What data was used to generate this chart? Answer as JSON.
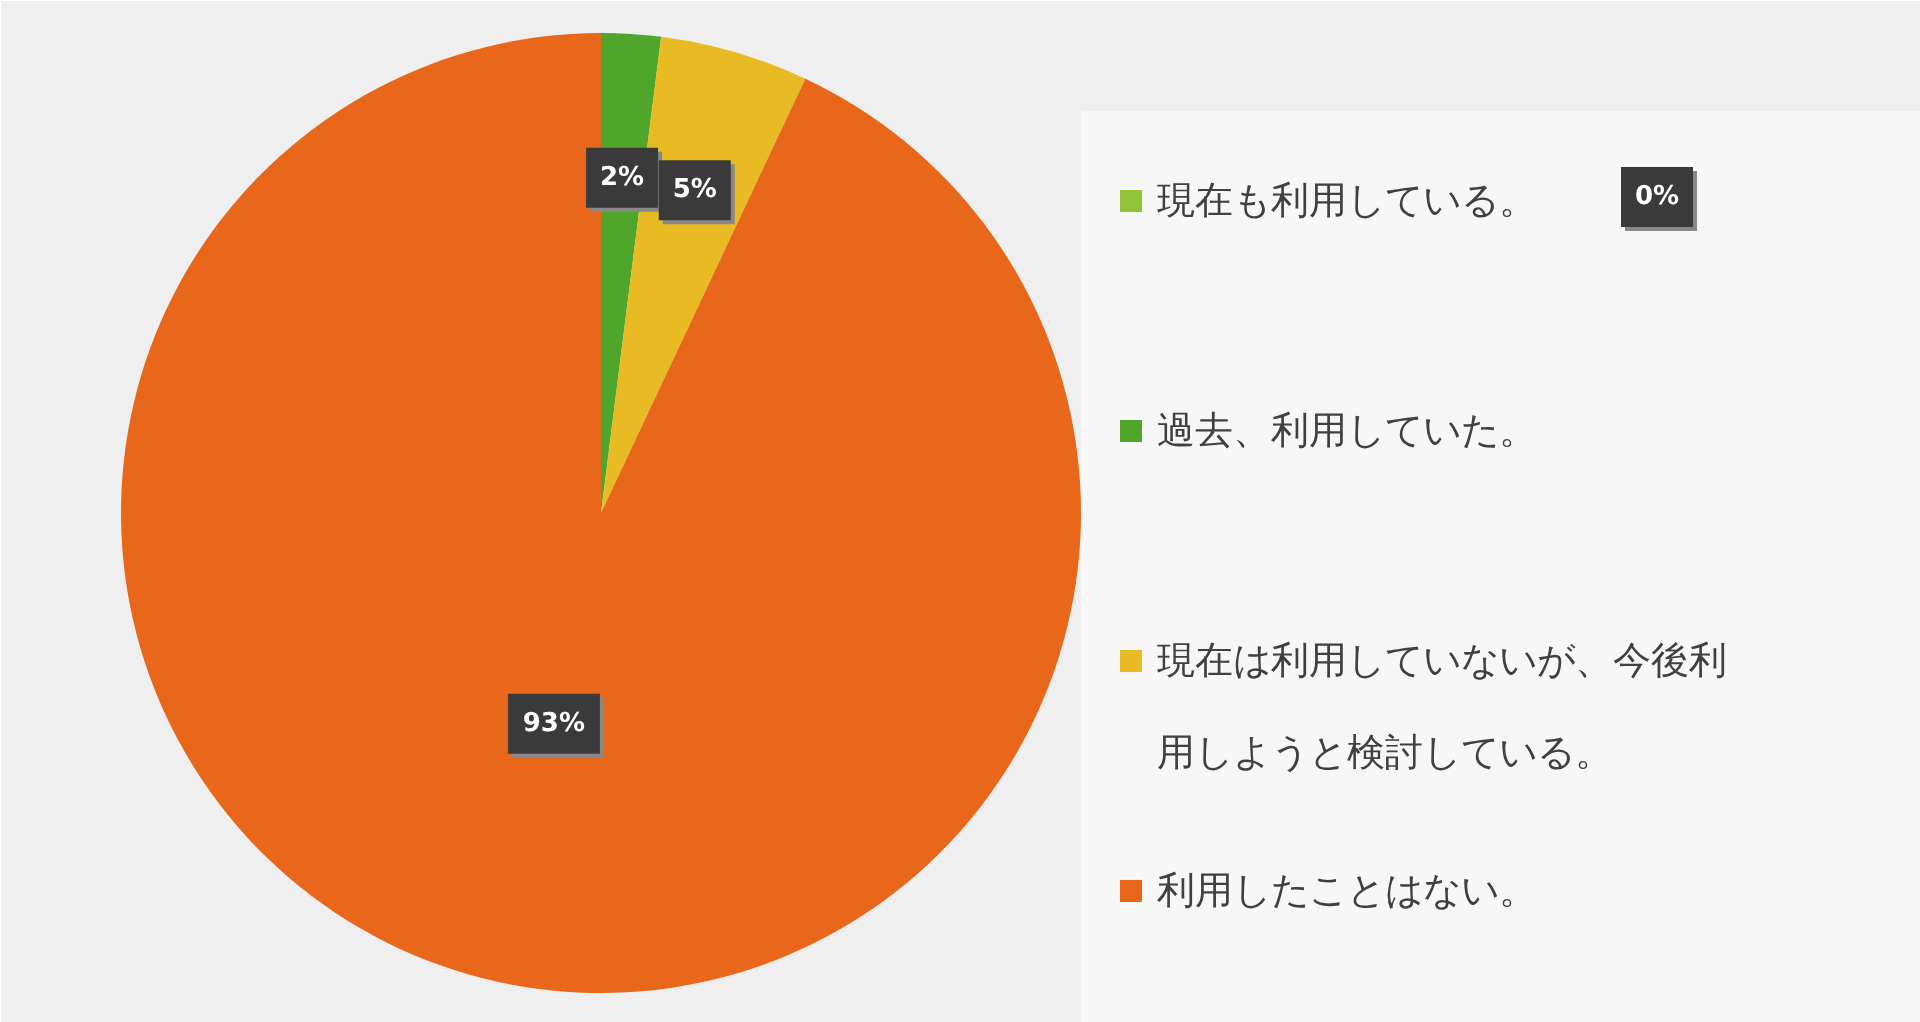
{
  "chart_data": {
    "type": "pie",
    "categories": [
      "現在も利用している。",
      "過去、利用していた。",
      "現在は利用していないが、今後利用しようと検討している。",
      "利用したことはない。"
    ],
    "values": [
      0,
      2,
      5,
      93
    ],
    "colors": [
      "#92c13a",
      "#4fa62b",
      "#e8bb24",
      "#e8671a"
    ],
    "value_labels": [
      "0%",
      "2%",
      "5%",
      "93%"
    ],
    "legend": "right"
  }
}
